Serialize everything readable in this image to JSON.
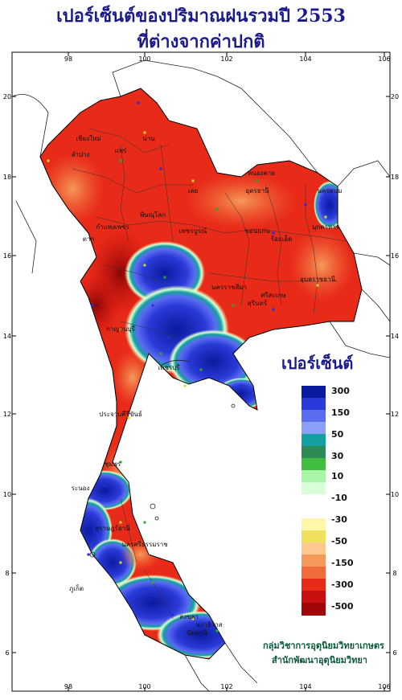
{
  "title": {
    "line1": "เปอร์เซ็นต์ของปริมาณฝนรวมปี 2553",
    "line2": "ที่ต่างจากค่าปกติ"
  },
  "axes": {
    "lon_labels": [
      "98",
      "100",
      "102",
      "104",
      "106"
    ],
    "lat_labels": [
      "20",
      "18",
      "16",
      "14",
      "12",
      "10",
      "8",
      "6"
    ]
  },
  "legend": {
    "title": "เปอร์เซ็นต์",
    "labels": [
      "300",
      "150",
      "50",
      "30",
      "10",
      "-10",
      "-30",
      "-50",
      "-150",
      "-300",
      "-500"
    ],
    "colors": [
      "#0a1a9e",
      "#2a3ad8",
      "#5a6cf0",
      "#8aa0f5",
      "#14a0a0",
      "#2e8b57",
      "#3ebd3e",
      "#a8f5a8",
      "#d8ffd8",
      "#ffffff",
      "#ffffff",
      "#fff8a8",
      "#f0e060",
      "#ffc890",
      "#f59a5a",
      "#f06a3a",
      "#e82a18",
      "#c81010",
      "#a00808"
    ]
  },
  "credit": {
    "line1": "กลุ่มวิชาการอุตุนิยมวิทยาเกษตร",
    "line2": "สำนักพัฒนาอุตุนิยมวิทยา"
  },
  "places": [
    "เชียงใหม่",
    "ลำปาง",
    "แพร่",
    "น่าน",
    "หนองคาย",
    "นครพนม",
    "มุกดาหาร",
    "ขอนแก่น",
    "อุบลราชธานี",
    "นครราชสีมา",
    "สุรินทร์",
    "กาญจนบุรี",
    "ประจวบคีรีขันธ์",
    "ชุมพร",
    "ระนอง",
    "สุราษฎร์ธานี",
    "นครศรีธรรมราช",
    "ภูเก็ต",
    "สงขลา",
    "ปัตตานี",
    "นราธิวาส",
    "เพชรบุรี",
    "ตาก",
    "พิษณุโลก",
    "เลย",
    "อุดรธานี",
    "กำแพงเพชร",
    "เพชรบูรณ์",
    "ร้อยเอ็ด",
    "ศรีสะเกษ"
  ]
}
